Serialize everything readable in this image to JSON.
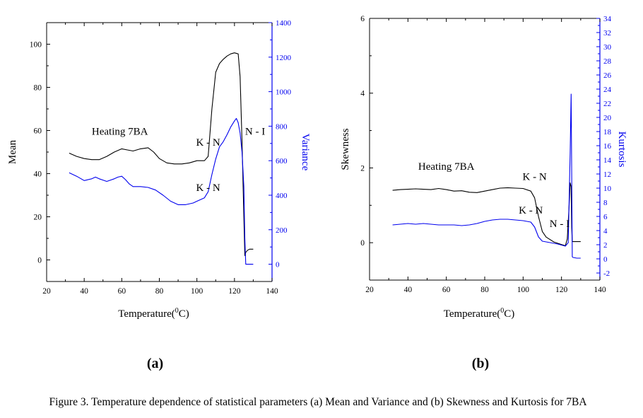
{
  "figure": {
    "caption": "Figure 3. Temperature dependence of statistical parameters (a) Mean and Variance  and (b) Skewness and Kurtosis for 7BA",
    "colors": {
      "primary": "#000000",
      "secondary": "#0000ee",
      "background": "#ffffff"
    }
  },
  "chart_data": [
    {
      "type": "line",
      "panel_label": "(a)",
      "xlabel": "Temperature(",
      "xlabel_sup": "0",
      "xlabel_unit": "C)",
      "ylabel_left": "Mean",
      "ylabel_right": "Variance",
      "xlim": [
        20,
        140
      ],
      "ylim_left": [
        -10,
        110
      ],
      "ylim_right": [
        -100,
        1400
      ],
      "x_ticks": [
        20,
        40,
        60,
        80,
        100,
        120,
        140
      ],
      "y_left_ticks": [
        0,
        20,
        40,
        60,
        80,
        100
      ],
      "y_right_ticks": [
        0,
        200,
        400,
        600,
        800,
        1000,
        1200,
        1400
      ],
      "annotations": [
        {
          "text": "Heating 7BA",
          "x": 59,
          "y_left": 58
        },
        {
          "text": "K - N",
          "x": 106,
          "y_left": 53
        },
        {
          "text": "N - I",
          "x": 131,
          "y_left": 58
        },
        {
          "text": "K - N",
          "x": 106,
          "y_left": 32
        }
      ],
      "series": [
        {
          "name": "Mean",
          "axis": "left",
          "color": "#000000",
          "x": [
            32,
            36,
            40,
            44,
            48,
            52,
            56,
            60,
            63,
            66,
            70,
            74,
            77,
            80,
            84,
            88,
            92,
            96,
            100,
            104,
            106,
            108,
            110,
            112,
            114,
            116,
            118,
            120,
            122,
            123,
            124,
            125,
            125.5,
            126,
            127,
            128,
            130
          ],
          "values": [
            49.5,
            48,
            47,
            46.5,
            46.5,
            48,
            50,
            51.5,
            51,
            50.5,
            51.5,
            52,
            50,
            47,
            45,
            44.5,
            44.5,
            45,
            46,
            46,
            48,
            70,
            87,
            91,
            93,
            94.5,
            95.5,
            96,
            95.5,
            85,
            55,
            20,
            2,
            3.5,
            4.5,
            5,
            5
          ]
        },
        {
          "name": "Variance",
          "axis": "right",
          "color": "#0000ee",
          "x": [
            32,
            36,
            40,
            44,
            46,
            48,
            52,
            56,
            58,
            60,
            62,
            64,
            66,
            70,
            74,
            78,
            82,
            86,
            90,
            94,
            98,
            100,
            104,
            106,
            108,
            110,
            112,
            114,
            116,
            118,
            120,
            121,
            122,
            123,
            124,
            125,
            125.5,
            126,
            128,
            130
          ],
          "values": [
            530,
            510,
            485,
            495,
            505,
            495,
            480,
            495,
            505,
            510,
            490,
            465,
            450,
            450,
            445,
            430,
            400,
            365,
            345,
            345,
            355,
            365,
            385,
            420,
            520,
            610,
            680,
            710,
            750,
            795,
            830,
            845,
            820,
            760,
            650,
            450,
            150,
            0,
            0,
            0
          ]
        }
      ]
    },
    {
      "type": "line",
      "panel_label": "(b)",
      "xlabel": "Temperature(",
      "xlabel_sup": "0",
      "xlabel_unit": "C)",
      "ylabel_left": "Skewness",
      "ylabel_right": "Kurtosis",
      "xlim": [
        20,
        140
      ],
      "ylim_left": [
        -1,
        6
      ],
      "ylim_right": [
        -3,
        34
      ],
      "x_ticks": [
        20,
        40,
        60,
        80,
        100,
        120,
        140
      ],
      "y_left_ticks": [
        0,
        2,
        4,
        6
      ],
      "y_right_ticks": [
        -2,
        0,
        2,
        4,
        6,
        8,
        10,
        12,
        14,
        16,
        18,
        20,
        22,
        24,
        26,
        28,
        30,
        32,
        34
      ],
      "annotations": [
        {
          "text": "Heating 7BA",
          "x": 60,
          "y_left": 1.95
        },
        {
          "text": "K - N",
          "x": 106,
          "y_left": 1.68
        },
        {
          "text": "K - N",
          "x": 104,
          "y_left": 0.78
        },
        {
          "text": "N - I",
          "x": 119,
          "y_left": 0.42
        }
      ],
      "series": [
        {
          "name": "Skewness",
          "axis": "left",
          "color": "#000000",
          "x": [
            32,
            36,
            40,
            44,
            48,
            52,
            56,
            60,
            64,
            68,
            72,
            76,
            80,
            84,
            88,
            92,
            96,
            100,
            104,
            106,
            108,
            110,
            112,
            116,
            120,
            122,
            123,
            124,
            124.5,
            125,
            125.3,
            125.6,
            126,
            128,
            130
          ],
          "values": [
            1.4,
            1.42,
            1.43,
            1.44,
            1.43,
            1.42,
            1.45,
            1.42,
            1.38,
            1.39,
            1.35,
            1.34,
            1.38,
            1.42,
            1.46,
            1.47,
            1.46,
            1.45,
            1.38,
            1.2,
            0.7,
            0.3,
            0.15,
            0.02,
            -0.05,
            -0.08,
            0.1,
            1.0,
            1.6,
            1.5,
            0.4,
            0.03,
            0.03,
            0.03,
            0.03
          ]
        },
        {
          "name": "Kurtosis",
          "axis": "right",
          "color": "#0000ee",
          "x": [
            32,
            36,
            40,
            44,
            48,
            52,
            56,
            60,
            64,
            68,
            72,
            76,
            80,
            84,
            88,
            92,
            96,
            100,
            104,
            106,
            108,
            110,
            114,
            118,
            122,
            123.5,
            124.5,
            125,
            125.3,
            125.6,
            126,
            128,
            130
          ],
          "values": [
            4.8,
            4.9,
            5.0,
            4.9,
            5.0,
            4.9,
            4.8,
            4.8,
            4.8,
            4.7,
            4.8,
            5.0,
            5.3,
            5.5,
            5.6,
            5.6,
            5.5,
            5.4,
            5.2,
            4.5,
            3.1,
            2.5,
            2.3,
            2.1,
            1.8,
            2.3,
            15.0,
            23.3,
            12.0,
            0.3,
            0.2,
            0.1,
            0.1
          ]
        }
      ]
    }
  ]
}
